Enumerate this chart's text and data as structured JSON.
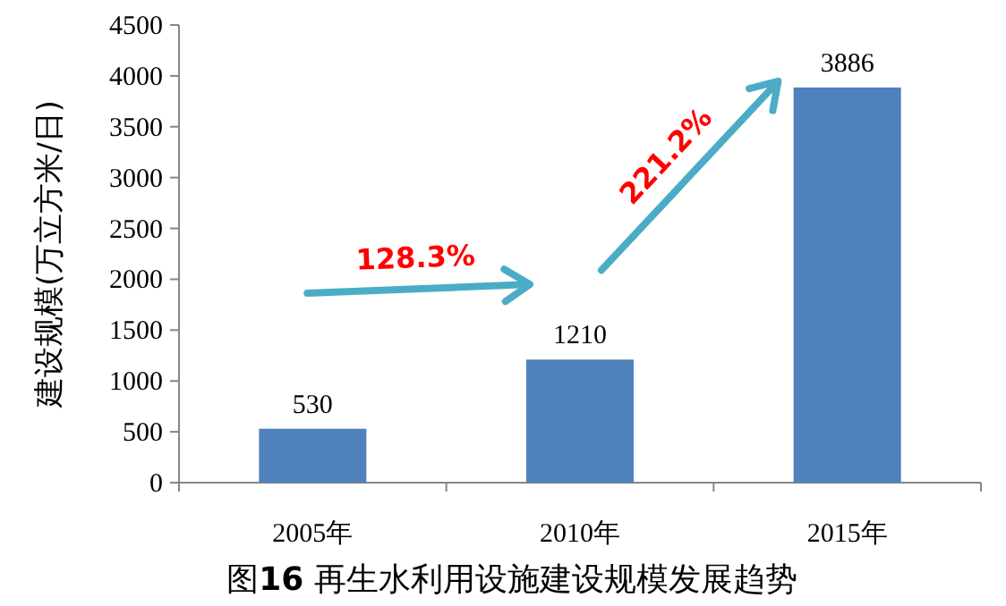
{
  "chart_data": {
    "type": "bar",
    "title": "图**16** 再生水利用设施建设规模发展趋势",
    "ylabel": "建设规模(万立方米/日)",
    "categories": [
      "2005年",
      "2010年",
      "2015年"
    ],
    "values": [
      530,
      1210,
      3886
    ],
    "color": "#4f81bd",
    "ylim": [
      0,
      4500
    ],
    "yticks": [
      0,
      500,
      1000,
      1500,
      2000,
      2500,
      3000,
      3500,
      4000,
      4500
    ],
    "data_labels": true,
    "annotations": [
      "128.3%",
      "221.2%"
    ]
  }
}
